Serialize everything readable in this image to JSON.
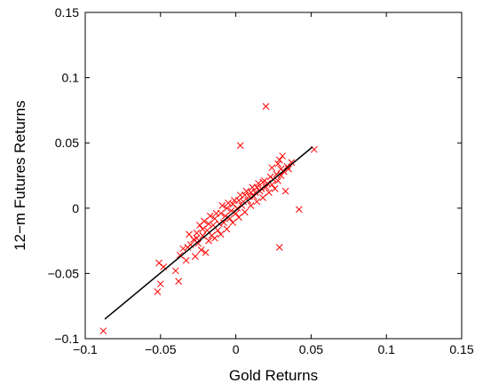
{
  "chart_data": {
    "type": "scatter",
    "title": "",
    "xlabel": "Gold Returns",
    "ylabel": "12−m Futures Returns",
    "xlim": [
      -0.1,
      0.15
    ],
    "ylim": [
      -0.1,
      0.15
    ],
    "xticks": [
      -0.1,
      -0.05,
      0,
      0.05,
      0.1,
      0.15
    ],
    "xtick_labels": [
      "−0.1",
      "−0.05",
      "0",
      "0.05",
      "0.1",
      "0.15"
    ],
    "yticks": [
      -0.1,
      -0.05,
      0,
      0.05,
      0.1,
      0.15
    ],
    "ytick_labels": [
      "−0.1",
      "−0.05",
      "0",
      "0.05",
      "0.1",
      "0.15"
    ],
    "grid": false,
    "legend": "none",
    "colors": {
      "points": "#ff0000",
      "fit_line": "#000000",
      "axes": "#000000"
    },
    "marker": "x",
    "series": [
      {
        "values": [
          [
            -0.088,
            -0.094
          ],
          [
            -0.052,
            -0.064
          ],
          [
            -0.05,
            -0.058
          ],
          [
            -0.051,
            -0.042
          ],
          [
            -0.048,
            -0.045
          ],
          [
            -0.04,
            -0.048
          ],
          [
            -0.038,
            -0.056
          ],
          [
            -0.037,
            -0.036
          ],
          [
            -0.035,
            -0.031
          ],
          [
            -0.033,
            -0.04
          ],
          [
            -0.032,
            -0.03
          ],
          [
            -0.031,
            -0.02
          ],
          [
            -0.03,
            -0.028
          ],
          [
            -0.028,
            -0.024
          ],
          [
            -0.027,
            -0.037
          ],
          [
            -0.026,
            -0.019
          ],
          [
            -0.025,
            -0.027
          ],
          [
            -0.024,
            -0.013
          ],
          [
            -0.023,
            -0.032
          ],
          [
            -0.022,
            -0.021
          ],
          [
            -0.021,
            -0.01
          ],
          [
            -0.02,
            -0.034
          ],
          [
            -0.019,
            -0.017
          ],
          [
            -0.018,
            -0.025
          ],
          [
            -0.017,
            -0.006
          ],
          [
            -0.016,
            -0.021
          ],
          [
            -0.015,
            -0.013
          ],
          [
            -0.014,
            -0.023
          ],
          [
            -0.013,
            -0.004
          ],
          [
            -0.012,
            -0.017
          ],
          [
            -0.011,
            -0.012
          ],
          [
            -0.01,
            -0.02
          ],
          [
            -0.009,
            0.002
          ],
          [
            -0.008,
            -0.011
          ],
          [
            -0.007,
            -0.006
          ],
          [
            -0.006,
            -0.016
          ],
          [
            -0.005,
            0.004
          ],
          [
            -0.004,
            -0.008
          ],
          [
            -0.003,
            -0.002
          ],
          [
            -0.002,
            -0.011
          ],
          [
            -0.001,
            0.006
          ],
          [
            0.0,
            -0.004
          ],
          [
            0.001,
            0.0
          ],
          [
            0.002,
            -0.007
          ],
          [
            0.003,
            0.01
          ],
          [
            0.004,
            0.002
          ],
          [
            0.005,
            0.005
          ],
          [
            0.006,
            -0.003
          ],
          [
            0.007,
            0.013
          ],
          [
            0.008,
            0.006
          ],
          [
            0.009,
            0.009
          ],
          [
            0.01,
            0.002
          ],
          [
            0.011,
            0.016
          ],
          [
            0.012,
            0.009
          ],
          [
            0.013,
            0.012
          ],
          [
            0.014,
            0.005
          ],
          [
            0.015,
            0.019
          ],
          [
            0.016,
            0.013
          ],
          [
            0.017,
            0.015
          ],
          [
            0.018,
            0.008
          ],
          [
            0.019,
            0.021
          ],
          [
            0.02,
            0.016
          ],
          [
            0.021,
            0.019
          ],
          [
            0.022,
            0.012
          ],
          [
            0.023,
            0.024
          ],
          [
            0.024,
            0.018
          ],
          [
            0.025,
            0.022
          ],
          [
            0.026,
            0.015
          ],
          [
            0.027,
            0.026
          ],
          [
            0.028,
            0.021
          ],
          [
            0.03,
            0.025
          ],
          [
            0.032,
            0.028
          ],
          [
            -0.014,
            -0.008
          ],
          [
            -0.01,
            -0.004
          ],
          [
            -0.006,
            0.0
          ],
          [
            -0.002,
            0.003
          ],
          [
            0.002,
            0.006
          ],
          [
            0.006,
            0.01
          ],
          [
            0.01,
            0.012
          ],
          [
            -0.018,
            -0.012
          ],
          [
            -0.022,
            -0.016
          ],
          [
            -0.026,
            -0.023
          ],
          [
            0.014,
            0.016
          ],
          [
            0.018,
            0.02
          ],
          [
            0.003,
            0.048
          ],
          [
            0.02,
            0.078
          ],
          [
            0.029,
            0.037
          ],
          [
            0.031,
            0.04
          ],
          [
            0.037,
            0.035
          ],
          [
            0.042,
            -0.001
          ],
          [
            0.052,
            0.045
          ],
          [
            0.029,
            -0.03
          ],
          [
            0.033,
            0.013
          ],
          [
            0.024,
            0.031
          ],
          [
            0.028,
            0.034
          ],
          [
            0.034,
            0.032
          ],
          [
            0.035,
            0.03
          ],
          [
            0.03,
            0.03
          ]
        ]
      }
    ],
    "fit_line": {
      "x": [
        -0.087,
        0.051
      ],
      "y": [
        -0.085,
        0.047
      ]
    }
  }
}
